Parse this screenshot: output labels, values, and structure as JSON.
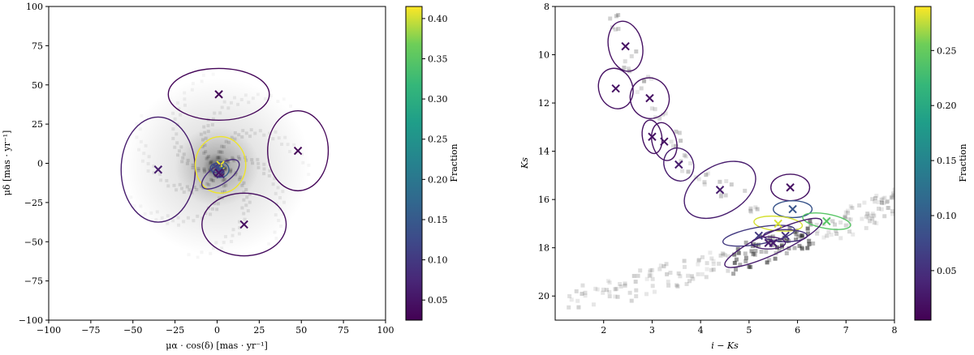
{
  "chart_data": [
    {
      "type": "scatter",
      "title": "",
      "xlabel": "μα · cos(δ)  [mas · yr⁻¹]",
      "ylabel": "μδ  [mas · yr⁻¹]",
      "xlim": [
        -100,
        100
      ],
      "ylim": [
        -100,
        100
      ],
      "xticks": [
        -100,
        -75,
        -50,
        -25,
        0,
        25,
        50,
        75,
        100
      ],
      "yticks": [
        -100,
        -75,
        -50,
        -25,
        0,
        25,
        50,
        75,
        100
      ],
      "grid": false,
      "background": "2D density histogram (greyscale) concentrated near the origin",
      "colorbar": {
        "label": "Fraction",
        "range": [
          0.025,
          0.415
        ],
        "ticks": [
          0.05,
          0.1,
          0.15,
          0.2,
          0.25,
          0.3,
          0.35,
          0.4
        ],
        "tick_labels": [
          "0.05",
          "0.10",
          "0.15",
          "0.20",
          "0.25",
          "0.30",
          "0.35",
          "0.40"
        ],
        "colormap": "viridis"
      },
      "components": [
        {
          "x": 1,
          "y": 44,
          "fraction": 0.03,
          "ellipse": {
            "w": 60,
            "h": 33,
            "angle": 0
          }
        },
        {
          "x": 48,
          "y": 8,
          "fraction": 0.03,
          "ellipse": {
            "w": 36,
            "h": 51,
            "angle": 0
          }
        },
        {
          "x": -35,
          "y": -4,
          "fraction": 0.06,
          "ellipse": {
            "w": 44,
            "h": 67,
            "angle": 0
          }
        },
        {
          "x": 16,
          "y": -39,
          "fraction": 0.04,
          "ellipse": {
            "w": 50,
            "h": 40,
            "angle": 0
          }
        },
        {
          "x": 2,
          "y": -1,
          "fraction": 0.41,
          "ellipse": {
            "w": 30,
            "h": 36,
            "angle": 0
          }
        },
        {
          "x": 2,
          "y": -4,
          "fraction": 0.15,
          "ellipse": {
            "w": 10,
            "h": 10,
            "angle": 0
          }
        },
        {
          "x": 2,
          "y": -7,
          "fraction": 0.08,
          "ellipse": {
            "w": 26,
            "h": 12,
            "angle": -35
          }
        },
        {
          "x": 0,
          "y": -3,
          "fraction": 0.12,
          "ellipse": {
            "w": 8,
            "h": 6,
            "angle": 0
          }
        },
        {
          "x": 1,
          "y": -6,
          "fraction": 0.05,
          "ellipse": {
            "w": 6,
            "h": 5,
            "angle": 0
          }
        }
      ]
    },
    {
      "type": "scatter",
      "title": "",
      "xlabel": "i − Ks",
      "ylabel": "Ks",
      "xlim": [
        1.0,
        8.0
      ],
      "ylim": [
        21.0,
        8.0
      ],
      "y_inverted": true,
      "xticks": [
        2,
        3,
        4,
        5,
        6,
        7,
        8
      ],
      "yticks": [
        8,
        10,
        12,
        14,
        16,
        18,
        20
      ],
      "grid": false,
      "background": "2D density histogram (greyscale) along a diagonal sequence",
      "colorbar": {
        "label": "Fraction",
        "range": [
          0.005,
          0.29
        ],
        "ticks": [
          0.05,
          0.1,
          0.15,
          0.2,
          0.25
        ],
        "tick_labels": [
          "0.05",
          "0.10",
          "0.15",
          "0.20",
          "0.25"
        ],
        "colormap": "viridis"
      },
      "components": [
        {
          "x": 2.45,
          "y": 9.65,
          "fraction": 0.02,
          "ellipse": {
            "w": 0.7,
            "h": 2.1,
            "angle": -12
          }
        },
        {
          "x": 2.25,
          "y": 11.4,
          "fraction": 0.02,
          "ellipse": {
            "w": 0.7,
            "h": 1.7,
            "angle": -18
          }
        },
        {
          "x": 2.95,
          "y": 11.8,
          "fraction": 0.02,
          "ellipse": {
            "w": 0.8,
            "h": 1.7,
            "angle": -20
          }
        },
        {
          "x": 3.0,
          "y": 13.4,
          "fraction": 0.02,
          "ellipse": {
            "w": 0.4,
            "h": 1.4,
            "angle": -10
          }
        },
        {
          "x": 3.25,
          "y": 13.6,
          "fraction": 0.02,
          "ellipse": {
            "w": 0.5,
            "h": 1.6,
            "angle": -15
          }
        },
        {
          "x": 3.55,
          "y": 14.55,
          "fraction": 0.03,
          "ellipse": {
            "w": 0.6,
            "h": 1.4,
            "angle": -25
          }
        },
        {
          "x": 4.4,
          "y": 15.6,
          "fraction": 0.03,
          "ellipse": {
            "w": 1.6,
            "h": 2.0,
            "angle": -30
          }
        },
        {
          "x": 5.85,
          "y": 15.5,
          "fraction": 0.02,
          "ellipse": {
            "w": 0.8,
            "h": 1.1,
            "angle": 0
          }
        },
        {
          "x": 5.9,
          "y": 16.4,
          "fraction": 0.09,
          "ellipse": {
            "w": 0.8,
            "h": 0.7,
            "angle": 0
          }
        },
        {
          "x": 6.6,
          "y": 16.9,
          "fraction": 0.24,
          "ellipse": {
            "w": 1.0,
            "h": 0.6,
            "angle": 10
          }
        },
        {
          "x": 5.6,
          "y": 17.0,
          "fraction": 0.28,
          "ellipse": {
            "w": 1.0,
            "h": 0.6,
            "angle": 5
          }
        },
        {
          "x": 5.2,
          "y": 17.5,
          "fraction": 0.06,
          "ellipse": {
            "w": 1.5,
            "h": 0.7,
            "angle": -10
          }
        },
        {
          "x": 5.75,
          "y": 17.5,
          "fraction": 0.05,
          "ellipse": {
            "w": 0.9,
            "h": 0.5,
            "angle": 0
          }
        },
        {
          "x": 5.4,
          "y": 17.8,
          "fraction": 0.03,
          "ellipse": {
            "w": 0.7,
            "h": 0.5,
            "angle": 0
          }
        },
        {
          "x": 5.5,
          "y": 17.8,
          "fraction": 0.03,
          "ellipse": {
            "w": 2.2,
            "h": 0.9,
            "angle": -25
          }
        }
      ]
    }
  ]
}
